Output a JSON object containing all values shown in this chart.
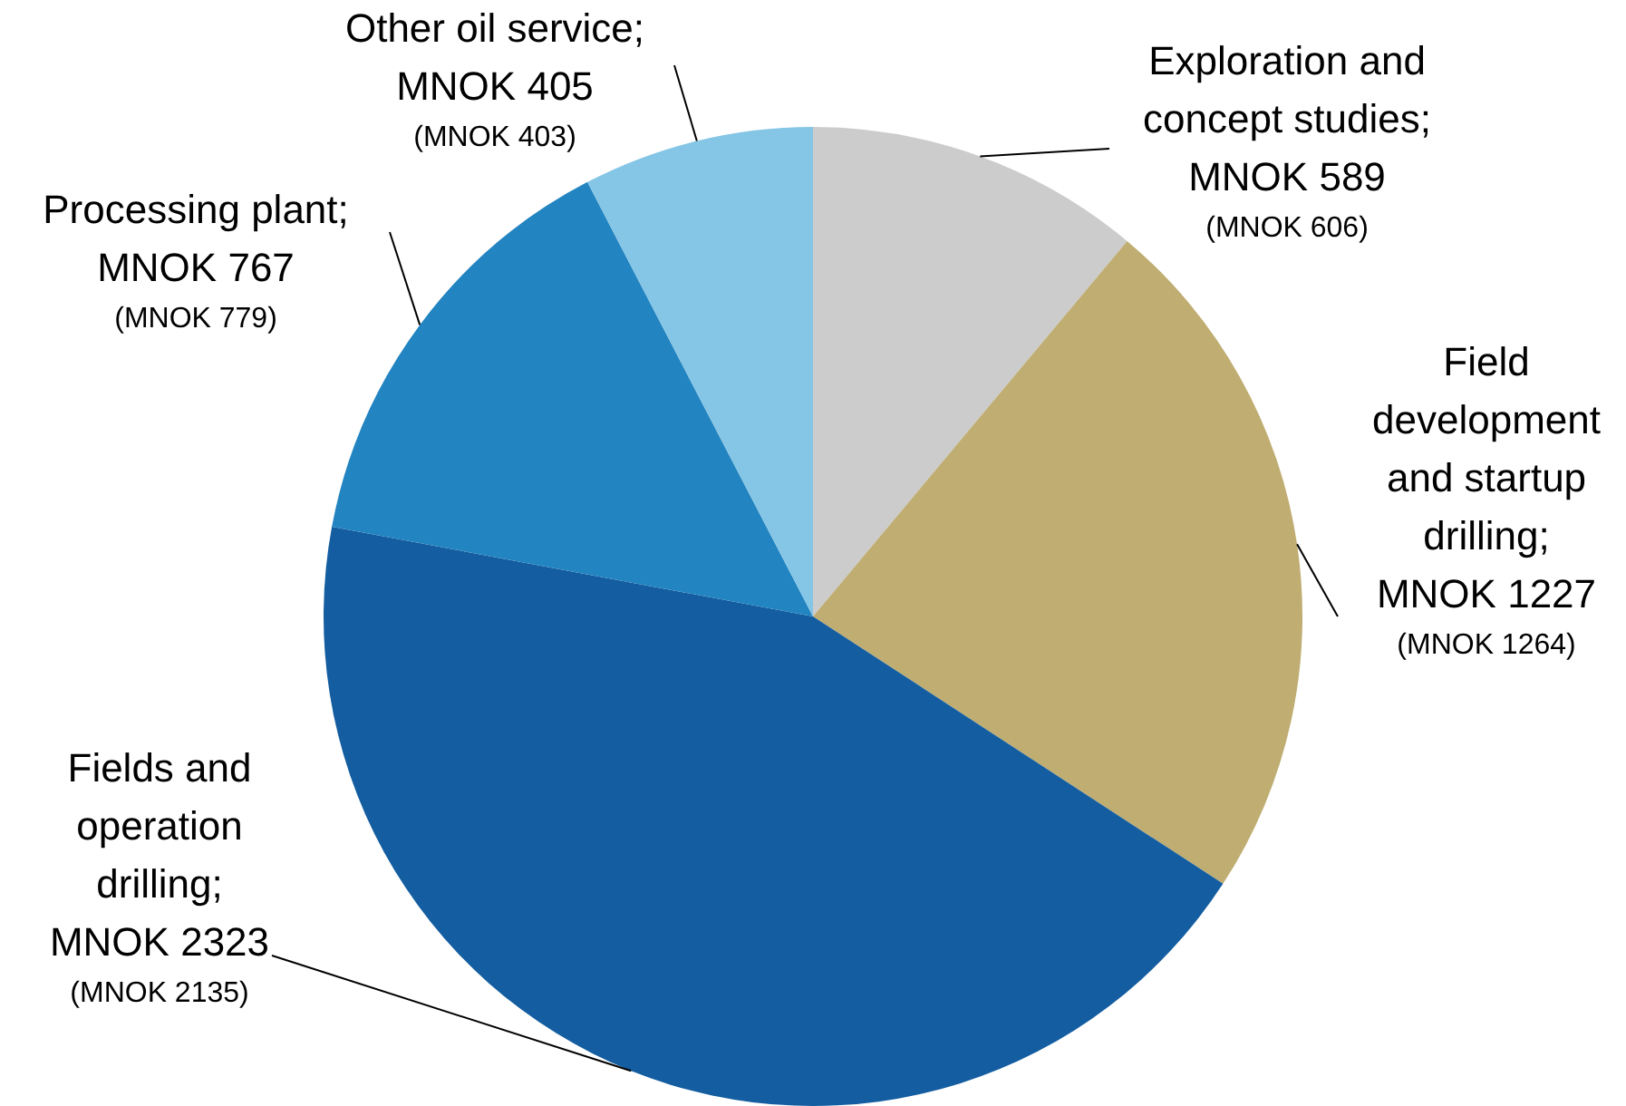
{
  "chart_data": {
    "type": "pie",
    "categories": [
      "Exploration and concept studies",
      "Field development and startup drilling",
      "Fields and operation drilling",
      "Processing plant",
      "Other oil service"
    ],
    "values": [
      589,
      1227,
      2323,
      767,
      405
    ],
    "colors": [
      "#cccccc",
      "#bfad72",
      "#135da0",
      "#2284c0",
      "#85c5e5"
    ],
    "value_labels": [
      "; MNOK 589",
      "; MNOK 1227",
      "; MNOK 2323",
      "; MNOK 767",
      "; MNOK 405"
    ],
    "annotations": [
      "(MNOK 606)",
      "(MNOK 1264)",
      "(MNOK 2135)",
      "(MNOK 779)",
      "(MNOK 403)"
    ],
    "legend": false
  }
}
